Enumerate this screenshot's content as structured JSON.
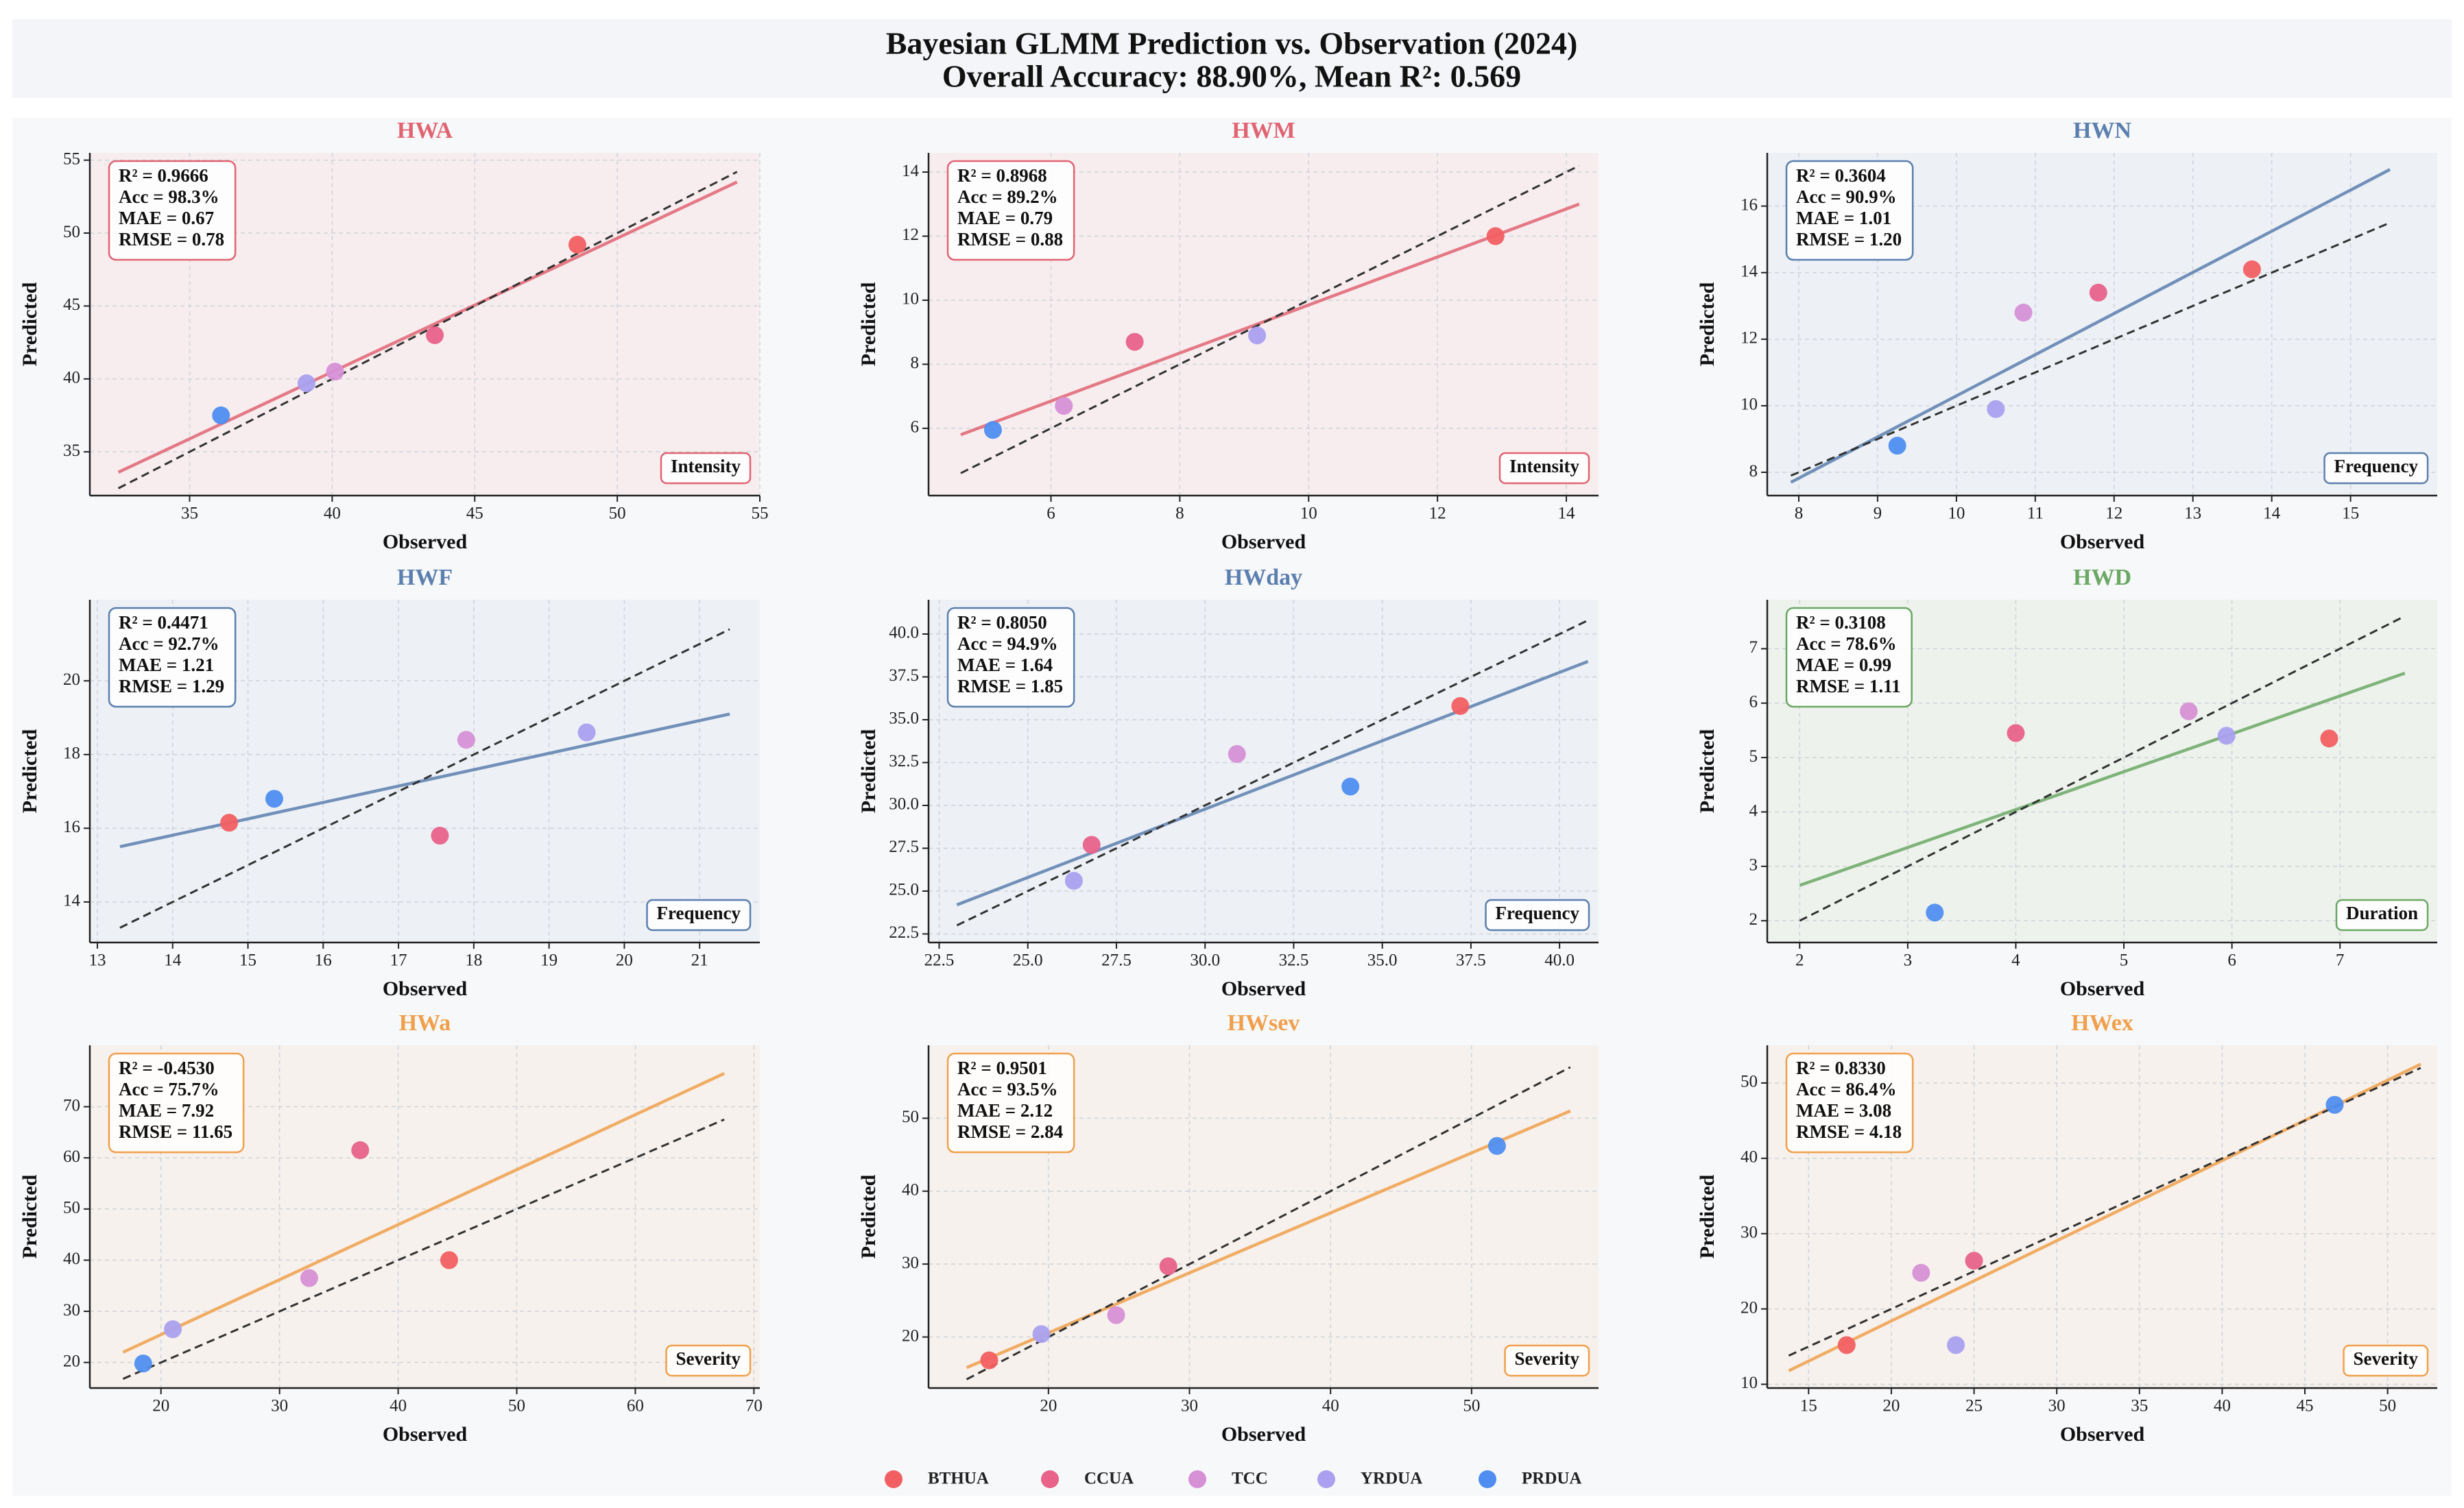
{
  "title": "Bayesian GLMM Prediction vs. Observation (2024)",
  "subtitle": "Overall Accuracy: 88.90%, Mean R²: 0.569",
  "legend": [
    {
      "name": "BTHUA",
      "color": "#f25f62"
    },
    {
      "name": "CCUA",
      "color": "#e8628a"
    },
    {
      "name": "TCC",
      "color": "#d690d6"
    },
    {
      "name": "YRDUA",
      "color": "#aaa0ef"
    },
    {
      "name": "PRDUA",
      "color": "#4f8ef0"
    }
  ],
  "chart_data": [
    {
      "type": "scatter",
      "title": "HWA",
      "xlabel": "Observed",
      "ylabel": "Predicted",
      "stats": [
        "R² = 0.9666",
        "Acc = 98.3%",
        "MAE = 0.67",
        "RMSE = 0.78"
      ],
      "category_label": "Intensity",
      "color": "#e06472",
      "background": "#f7edef",
      "grid": true,
      "xlim": [
        31.5,
        55
      ],
      "ylim": [
        32,
        55.5
      ],
      "xticks": [
        35,
        40,
        45,
        50,
        55
      ],
      "yticks": [
        35,
        40,
        45,
        50,
        55
      ],
      "points": {
        "x": [
          48.6,
          43.6,
          40.1,
          39.1,
          36.1
        ],
        "y": [
          49.2,
          43.0,
          40.5,
          39.7,
          37.5
        ]
      },
      "fit_line": {
        "x": [
          32.5,
          54.2
        ],
        "y": [
          33.6,
          53.5
        ]
      },
      "reference_line": {
        "x": [
          32.5,
          54.2
        ],
        "y": [
          32.5,
          54.2
        ]
      }
    },
    {
      "type": "scatter",
      "title": "HWM",
      "xlabel": "Observed",
      "ylabel": "Predicted",
      "stats": [
        "R² = 0.8968",
        "Acc = 89.2%",
        "MAE = 0.79",
        "RMSE = 0.88"
      ],
      "category_label": "Intensity",
      "color": "#e06472",
      "background": "#f7edef",
      "grid": true,
      "xlim": [
        4.1,
        14.5
      ],
      "ylim": [
        3.9,
        14.6
      ],
      "xticks": [
        6,
        8,
        10,
        12,
        14
      ],
      "yticks": [
        6,
        8,
        10,
        12,
        14
      ],
      "points": {
        "x": [
          12.9,
          7.3,
          6.2,
          9.2,
          5.1
        ],
        "y": [
          12.0,
          8.7,
          6.7,
          8.9,
          5.95
        ]
      },
      "fit_line": {
        "x": [
          4.6,
          14.2
        ],
        "y": [
          5.8,
          13.0
        ]
      },
      "reference_line": {
        "x": [
          4.6,
          14.2
        ],
        "y": [
          4.6,
          14.2
        ]
      }
    },
    {
      "type": "scatter",
      "title": "HWN",
      "xlabel": "Observed",
      "ylabel": "Predicted",
      "stats": [
        "R² = 0.3604",
        "Acc = 90.9%",
        "MAE = 1.01",
        "RMSE = 1.20"
      ],
      "category_label": "Frequency",
      "color": "#5b7fae",
      "background": "#edf0f5",
      "grid": true,
      "xlim": [
        7.6,
        16.1
      ],
      "ylim": [
        7.3,
        17.6
      ],
      "xticks": [
        8,
        9,
        10,
        11,
        12,
        13,
        14,
        15
      ],
      "yticks": [
        8,
        10,
        12,
        14,
        16
      ],
      "points": {
        "x": [
          13.75,
          11.8,
          10.85,
          10.5,
          9.25
        ],
        "y": [
          14.1,
          13.4,
          12.8,
          9.9,
          8.8
        ]
      },
      "fit_line": {
        "x": [
          7.9,
          15.5
        ],
        "y": [
          7.7,
          17.1
        ]
      },
      "reference_line": {
        "x": [
          7.9,
          15.5
        ],
        "y": [
          7.9,
          15.5
        ]
      }
    },
    {
      "type": "scatter",
      "title": "HWF",
      "xlabel": "Observed",
      "ylabel": "Predicted",
      "stats": [
        "R² = 0.4471",
        "Acc = 92.7%",
        "MAE = 1.21",
        "RMSE = 1.29"
      ],
      "category_label": "Frequency",
      "color": "#5b7fae",
      "background": "#edf0f5",
      "grid": true,
      "xlim": [
        12.9,
        21.8
      ],
      "ylim": [
        12.9,
        22.2
      ],
      "xticks": [
        13,
        14,
        15,
        16,
        17,
        18,
        19,
        20,
        21
      ],
      "yticks": [
        14,
        16,
        18,
        20
      ],
      "points": {
        "x": [
          14.75,
          17.55,
          17.9,
          19.5,
          15.35
        ],
        "y": [
          16.15,
          15.8,
          18.4,
          18.6,
          16.8
        ]
      },
      "fit_line": {
        "x": [
          13.3,
          21.4
        ],
        "y": [
          15.5,
          19.1
        ]
      },
      "reference_line": {
        "x": [
          13.3,
          21.4
        ],
        "y": [
          13.3,
          21.4
        ]
      }
    },
    {
      "type": "scatter",
      "title": "HWday",
      "xlabel": "Observed",
      "ylabel": "Predicted",
      "stats": [
        "R² = 0.8050",
        "Acc = 94.9%",
        "MAE = 1.64",
        "RMSE = 1.85"
      ],
      "category_label": "Frequency",
      "color": "#5b7fae",
      "background": "#edf0f5",
      "grid": true,
      "xlim": [
        22.2,
        41.1
      ],
      "ylim": [
        22,
        42
      ],
      "xticks": [
        22.5,
        {
          "value": 25,
          "label": "25.0"
        },
        27.5,
        {
          "value": 30,
          "label": "30.0"
        },
        32.5,
        {
          "value": 35,
          "label": "35.0"
        },
        37.5,
        {
          "value": 40,
          "label": "40.0"
        }
      ],
      "yticks": [
        22.5,
        {
          "value": 25,
          "label": "25.0"
        },
        27.5,
        {
          "value": 30,
          "label": "30.0"
        },
        32.5,
        {
          "value": 35,
          "label": "35.0"
        },
        37.5,
        {
          "value": 40,
          "label": "40.0"
        }
      ],
      "points": {
        "x": [
          37.2,
          26.8,
          30.9,
          26.3,
          34.1
        ],
        "y": [
          35.8,
          27.7,
          33.0,
          25.6,
          31.1
        ]
      },
      "fit_line": {
        "x": [
          23,
          40.8
        ],
        "y": [
          24.2,
          38.4
        ]
      },
      "reference_line": {
        "x": [
          23,
          40.8
        ],
        "y": [
          23,
          40.8
        ]
      }
    },
    {
      "type": "scatter",
      "title": "HWD",
      "xlabel": "Observed",
      "ylabel": "Predicted",
      "stats": [
        "R² = 0.3108",
        "Acc = 78.6%",
        "MAE = 0.99",
        "RMSE = 1.11"
      ],
      "category_label": "Duration",
      "color": "#6aa864",
      "background": "#eef2ed",
      "grid": true,
      "xlim": [
        1.7,
        7.9
      ],
      "ylim": [
        1.6,
        7.9
      ],
      "xticks": [
        2,
        3,
        4,
        5,
        6,
        7
      ],
      "yticks": [
        2,
        3,
        4,
        5,
        6,
        7
      ],
      "points": {
        "x": [
          6.9,
          4.0,
          5.6,
          5.95,
          3.25
        ],
        "y": [
          5.35,
          5.45,
          5.85,
          5.4,
          2.15
        ]
      },
      "fit_line": {
        "x": [
          2,
          7.6
        ],
        "y": [
          2.65,
          6.55
        ]
      },
      "reference_line": {
        "x": [
          2,
          7.6
        ],
        "y": [
          2,
          7.6
        ]
      }
    },
    {
      "type": "scatter",
      "title": "HWa",
      "xlabel": "Observed",
      "ylabel": "Predicted",
      "stats": [
        "R² = -0.4530",
        "Acc = 75.7%",
        "MAE = 7.92",
        "RMSE = 11.65"
      ],
      "category_label": "Severity",
      "color": "#f0a04c",
      "background": "#f6f1ec",
      "grid": true,
      "xlim": [
        14,
        70.5
      ],
      "ylim": [
        15,
        82
      ],
      "xticks": [
        20,
        30,
        40,
        50,
        60,
        70
      ],
      "yticks": [
        20,
        30,
        40,
        50,
        60,
        70
      ],
      "points": {
        "x": [
          44.3,
          36.8,
          32.5,
          21,
          18.5
        ],
        "y": [
          40,
          61.5,
          36.5,
          26.5,
          19.8
        ]
      },
      "fit_line": {
        "x": [
          16.8,
          67.5
        ],
        "y": [
          22,
          76.5
        ]
      },
      "reference_line": {
        "x": [
          16.8,
          67.5
        ],
        "y": [
          16.8,
          67.5
        ]
      }
    },
    {
      "type": "scatter",
      "title": "HWsev",
      "xlabel": "Observed",
      "ylabel": "Predicted",
      "stats": [
        "R² = 0.9501",
        "Acc = 93.5%",
        "MAE = 2.12",
        "RMSE = 2.84"
      ],
      "category_label": "Severity",
      "color": "#f0a04c",
      "background": "#f6f1ec",
      "grid": true,
      "xlim": [
        11.5,
        59
      ],
      "ylim": [
        13,
        60
      ],
      "xticks": [
        20,
        30,
        40,
        50
      ],
      "yticks": [
        20,
        30,
        40,
        50
      ],
      "points": {
        "x": [
          15.8,
          28.5,
          24.8,
          19.5,
          51.8
        ],
        "y": [
          16.8,
          29.7,
          23.0,
          20.4,
          46.2
        ]
      },
      "fit_line": {
        "x": [
          14.2,
          57
        ],
        "y": [
          15.8,
          51
        ]
      },
      "reference_line": {
        "x": [
          14.2,
          57
        ],
        "y": [
          14.2,
          57
        ]
      }
    },
    {
      "type": "scatter",
      "title": "HWex",
      "xlabel": "Observed",
      "ylabel": "Predicted",
      "stats": [
        "R² = 0.8330",
        "Acc = 86.4%",
        "MAE = 3.08",
        "RMSE = 4.18"
      ],
      "category_label": "Severity",
      "color": "#f0a04c",
      "background": "#f6f1ec",
      "grid": true,
      "xlim": [
        12.5,
        53
      ],
      "ylim": [
        9.5,
        55
      ],
      "xticks": [
        15,
        20,
        25,
        30,
        35,
        40,
        45,
        50
      ],
      "yticks": [
        10,
        20,
        30,
        40,
        50
      ],
      "points": {
        "x": [
          17.3,
          25,
          21.8,
          23.9,
          46.8
        ],
        "y": [
          15.2,
          26.4,
          24.8,
          15.2,
          47.1
        ]
      },
      "fit_line": {
        "x": [
          13.8,
          52
        ],
        "y": [
          11.8,
          52.5
        ]
      },
      "reference_line": {
        "x": [
          13.8,
          52
        ],
        "y": [
          13.8,
          52
        ]
      }
    }
  ]
}
